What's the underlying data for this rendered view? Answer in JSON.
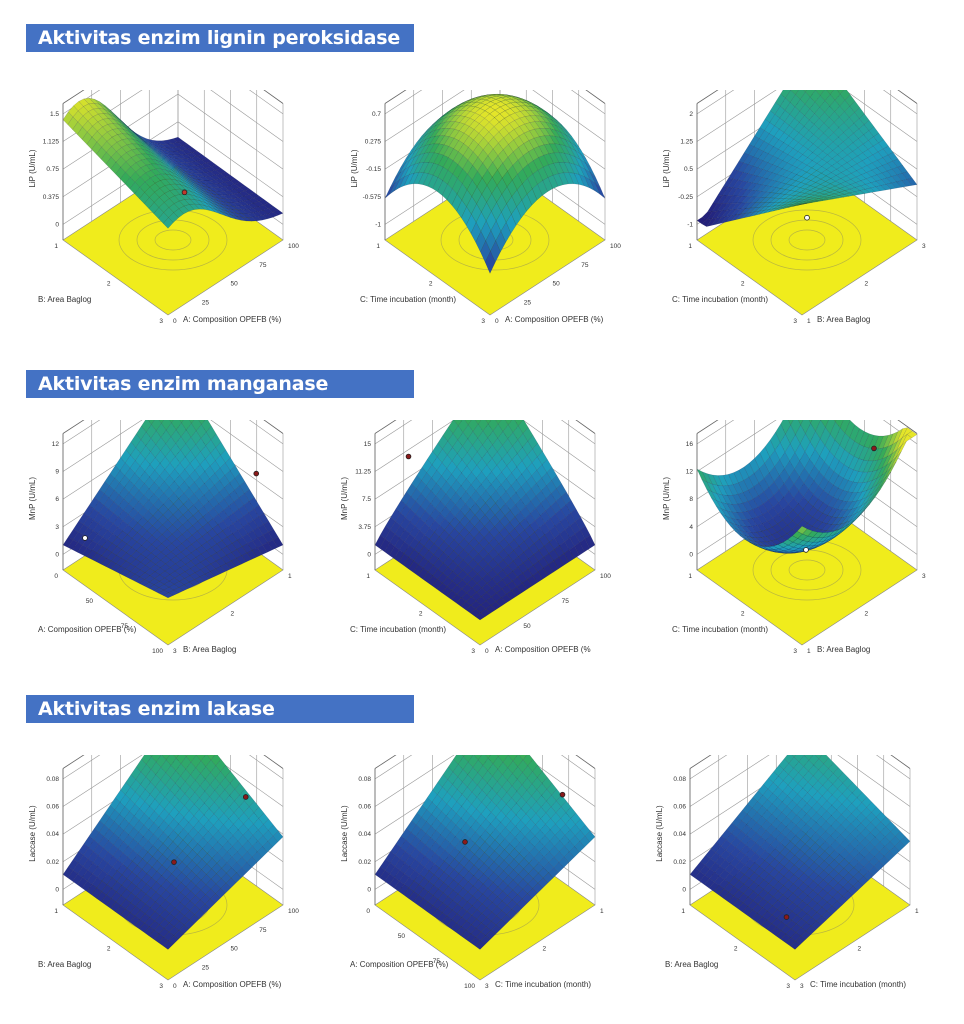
{
  "sections": [
    {
      "title": "Aktivitas enzim lignin  peroksidase"
    },
    {
      "title": "Aktivitas enzim manganase"
    },
    {
      "title": "Aktivitas enzim lakase"
    }
  ],
  "chart_data": [
    {
      "type": "surface3d",
      "section": 0,
      "zlabel": "LiP (U/mL)",
      "zticks": [
        "0",
        "0.375",
        "0.75",
        "1.125",
        "1.5"
      ],
      "zlim": [
        -0.3,
        1.5
      ],
      "left_axis": {
        "label": "B: Area Baglog",
        "ticks": [
          "1",
          "2",
          "3"
        ]
      },
      "right_axis": {
        "label": "A: Composition OPEFB (%)",
        "ticks": [
          "0",
          "25",
          "50",
          "75",
          "100"
        ]
      },
      "shape": "ridge",
      "points": [
        {
          "u": 0.6,
          "v": 0.5,
          "z": 0.1,
          "color": "#c0392b"
        }
      ]
    },
    {
      "type": "surface3d",
      "section": 0,
      "zlabel": "LiP (U/mL)",
      "zticks": [
        "-1",
        "-0.575",
        "-0.15",
        "0.275",
        "0.7"
      ],
      "zlim": [
        -1.2,
        0.7
      ],
      "left_axis": {
        "label": "C: Time incubation (month)",
        "ticks": [
          "1",
          "2",
          "3"
        ]
      },
      "right_axis": {
        "label": "A: Composition OPEFB (%)",
        "ticks": [
          "0",
          "25",
          "50",
          "75",
          "100"
        ]
      },
      "shape": "dome",
      "points": [
        {
          "u": 0.8,
          "v": 0.8,
          "z": 0.55,
          "color": "#ffffff"
        }
      ]
    },
    {
      "type": "surface3d",
      "section": 0,
      "zlabel": "LiP (U/mL)",
      "zticks": [
        "-1",
        "-0.25",
        "0.5",
        "1.25",
        "2"
      ],
      "zlim": [
        -1.3,
        2
      ],
      "left_axis": {
        "label": "C: Time incubation (month)",
        "ticks": [
          "1",
          "2",
          "3"
        ]
      },
      "right_axis": {
        "label": "B: Area Baglog",
        "ticks": [
          "1",
          "2",
          "3"
        ]
      },
      "shape": "saddle",
      "points": [
        {
          "u": 0.95,
          "v": 0.9,
          "z": 1.9,
          "color": "#ffffff"
        },
        {
          "u": 0.5,
          "v": 0.5,
          "z": -1.1,
          "color": "#ffffff"
        }
      ]
    },
    {
      "type": "surface3d",
      "section": 1,
      "zlabel": "MnP (U/mL)",
      "zticks": [
        "0",
        "3",
        "6",
        "9",
        "12"
      ],
      "zlim": [
        -1.5,
        12
      ],
      "left_axis": {
        "label": "A: Composition OPEFB (%)",
        "ticks": [
          "0",
          "50",
          "75",
          "100"
        ]
      },
      "right_axis": {
        "label": "B: Area Baglog",
        "ticks": [
          "3",
          "2",
          "1"
        ]
      },
      "shape": "tilt",
      "points": [
        {
          "u": 0.1,
          "v": 0.9,
          "z": 0.5,
          "color": "#ffffff"
        },
        {
          "u": 0.95,
          "v": 0.2,
          "z": 7,
          "color": "#8b1a1a"
        }
      ]
    },
    {
      "type": "surface3d",
      "section": 1,
      "zlabel": "MnP (U/mL)",
      "zticks": [
        "0",
        "3.75",
        "7.5",
        "11.25",
        "15"
      ],
      "zlim": [
        -1.5,
        15
      ],
      "left_axis": {
        "label": "C: Time incubation (month)",
        "ticks": [
          "1",
          "2",
          "3"
        ]
      },
      "right_axis": {
        "label": "A: Composition OPEFB (%",
        "ticks": [
          "0",
          "50",
          "75",
          "100"
        ]
      },
      "shape": "tilt2",
      "points": [
        {
          "u": 0.2,
          "v": 0.9,
          "z": 12,
          "color": "#8b1a1a"
        }
      ]
    },
    {
      "type": "surface3d",
      "section": 1,
      "zlabel": "MnP (U/mL)",
      "zticks": [
        "0",
        "4",
        "8",
        "12",
        "16"
      ],
      "zlim": [
        -1,
        16
      ],
      "left_axis": {
        "label": "C: Time incubation (month)",
        "ticks": [
          "1",
          "2",
          "3"
        ]
      },
      "right_axis": {
        "label": "B: Area Baglog",
        "ticks": [
          "1",
          "2",
          "3"
        ]
      },
      "shape": "bowl",
      "points": [
        {
          "u": 0.4,
          "v": 0.4,
          "z": 2,
          "color": "#ffffff"
        },
        {
          "u": 0.9,
          "v": 0.3,
          "z": 13,
          "color": "#8b1a1a"
        }
      ]
    },
    {
      "type": "surface3d",
      "section": 2,
      "zlabel": "Laccase (U/mL)",
      "zticks": [
        "0",
        "0.02",
        "0.04",
        "0.06",
        "0.08"
      ],
      "zlim": [
        -0.01,
        0.08
      ],
      "left_axis": {
        "label": "B: Area Baglog",
        "ticks": [
          "1",
          "2",
          "3"
        ]
      },
      "right_axis": {
        "label": "A: Composition OPEFB (%)",
        "ticks": [
          "0",
          "25",
          "50",
          "75",
          "100"
        ]
      },
      "shape": "plane",
      "points": [
        {
          "u": 0.6,
          "v": 0.6,
          "z": 0.0,
          "color": "#8b1a1a"
        },
        {
          "u": 0.95,
          "v": 0.3,
          "z": 0.05,
          "color": "#8b1a1a"
        }
      ]
    },
    {
      "type": "surface3d",
      "section": 2,
      "zlabel": "Laccase (U/mL)",
      "zticks": [
        "0",
        "0.02",
        "0.04",
        "0.06",
        "0.08"
      ],
      "zlim": [
        -0.015,
        0.08
      ],
      "left_axis": {
        "label": "A: Composition OPEFB (%)",
        "ticks": [
          "0",
          "50",
          "75",
          "100"
        ]
      },
      "right_axis": {
        "label": "C: Time incubation (month)",
        "ticks": [
          "3",
          "2",
          "1"
        ]
      },
      "shape": "plane2",
      "points": [
        {
          "u": 0.9,
          "v": 0.2,
          "z": 0.06,
          "color": "#8b1a1a"
        },
        {
          "u": 0.6,
          "v": 0.8,
          "z": 0.0,
          "color": "#8b1a1a"
        }
      ]
    },
    {
      "type": "surface3d",
      "section": 2,
      "zlabel": "Laccase (U/mL)",
      "zticks": [
        "0",
        "0.02",
        "0.04",
        "0.06",
        "0.08"
      ],
      "zlim": [
        -0.01,
        0.08
      ],
      "left_axis": {
        "label": "B: Area Baglog",
        "ticks": [
          "1",
          "2",
          "3"
        ]
      },
      "right_axis": {
        "label": "C: Time incubation (month)",
        "ticks": [
          "3",
          "2",
          "1"
        ]
      },
      "shape": "plane3",
      "points": [
        {
          "u": 0.2,
          "v": 0.3,
          "z": -0.002,
          "color": "#8b1a1a"
        }
      ]
    }
  ]
}
